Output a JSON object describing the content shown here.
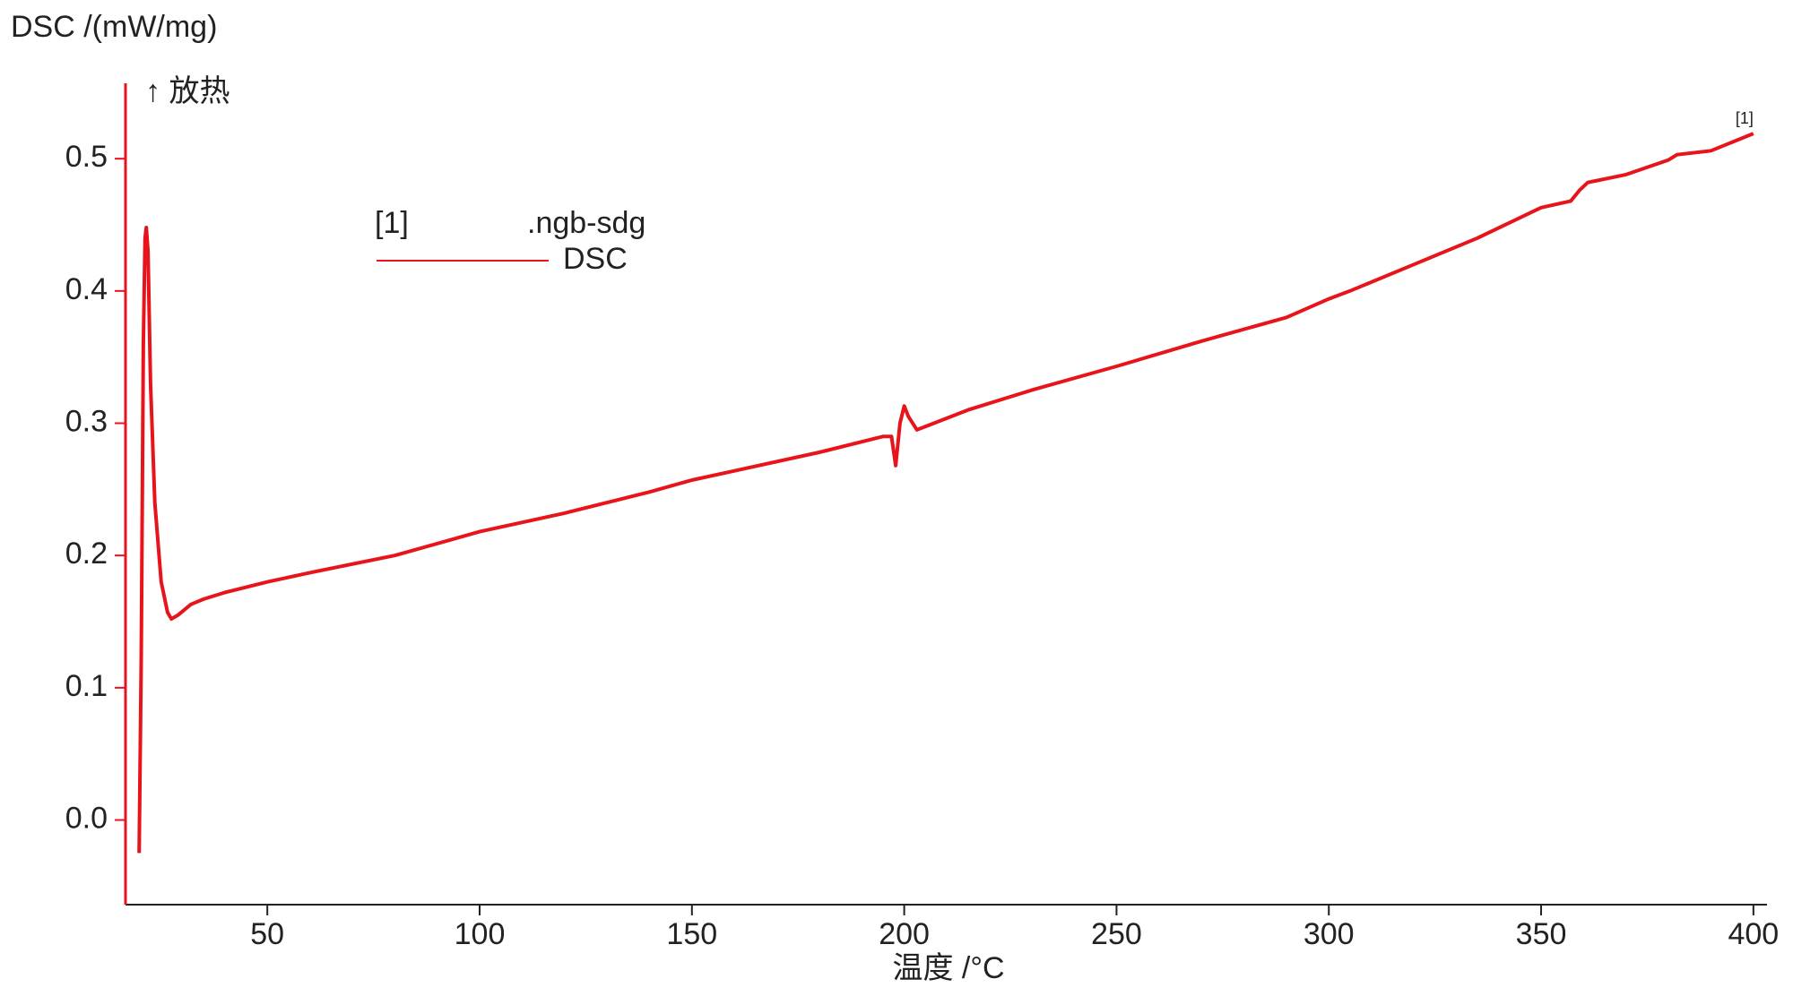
{
  "chart_data": {
    "type": "line",
    "y_title": "DSC /(mW/mg)",
    "exo_label": "↑ 放热",
    "x_title": "温度 /°C",
    "legend_id": "[1]",
    "legend_file": ".ngb-sdg",
    "end_label": "[1]",
    "x": [
      19.8,
      20.3,
      20.8,
      21.2,
      21.5,
      21.9,
      22.5,
      23.5,
      25,
      26.5,
      27.4,
      29,
      32,
      35,
      40,
      50,
      60,
      80,
      100,
      120,
      140,
      150,
      160,
      180,
      195,
      197,
      198,
      199,
      200,
      201,
      203,
      215,
      230,
      250,
      270,
      290,
      300,
      305,
      320,
      335,
      350,
      357,
      359,
      361,
      370,
      380,
      382,
      390,
      400
    ],
    "series": [
      {
        "name": "DSC",
        "color": "#e8141b",
        "values": [
          -0.025,
          0.12,
          0.36,
          0.44,
          0.448,
          0.43,
          0.33,
          0.24,
          0.18,
          0.157,
          0.152,
          0.155,
          0.163,
          0.167,
          0.172,
          0.18,
          0.187,
          0.2,
          0.218,
          0.232,
          0.248,
          0.257,
          0.264,
          0.278,
          0.29,
          0.29,
          0.268,
          0.3,
          0.313,
          0.305,
          0.295,
          0.31,
          0.325,
          0.343,
          0.362,
          0.38,
          0.394,
          0.4,
          0.42,
          0.44,
          0.463,
          0.468,
          0.476,
          0.482,
          0.488,
          0.499,
          0.503,
          0.506,
          0.519
        ]
      }
    ],
    "xlim": [
      16.6,
      403.2
    ],
    "ylim": [
      -0.064,
      0.557
    ],
    "xticks": [
      50,
      100,
      150,
      200,
      250,
      300,
      350,
      400
    ],
    "yticks": [
      {
        "value": 0,
        "label": "0.0"
      },
      0.1,
      0.2,
      0.3,
      0.4,
      0.5
    ],
    "axis_color": "#e8141b"
  }
}
